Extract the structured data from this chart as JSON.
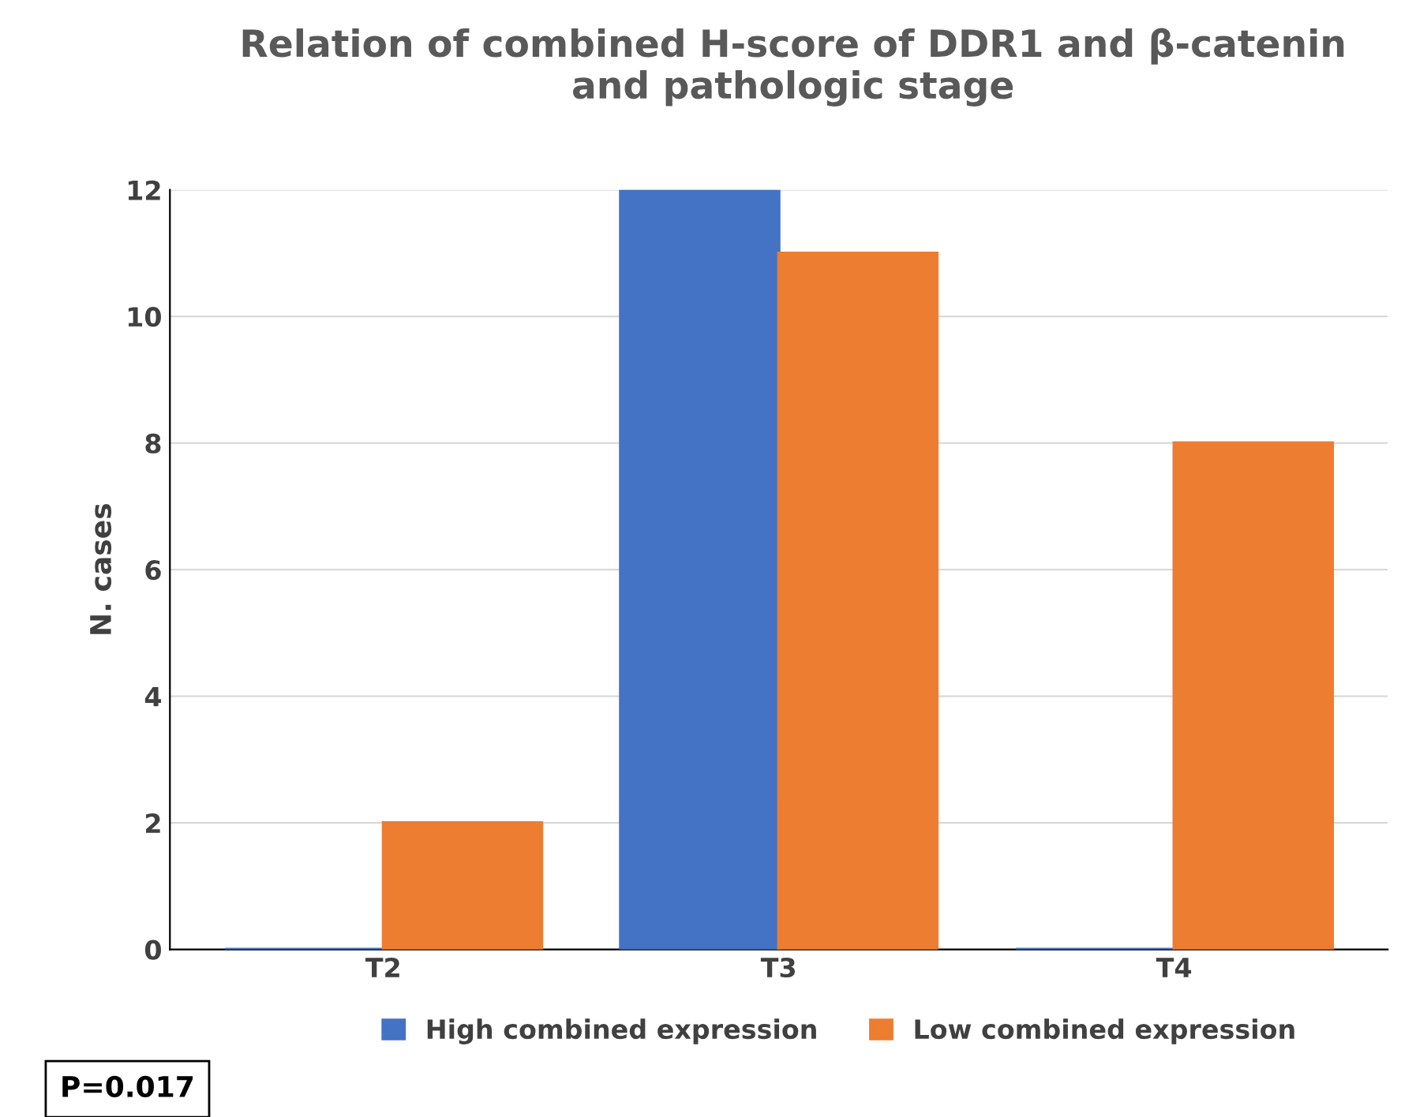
{
  "chart_data": {
    "type": "bar",
    "title": "Relation of combined H-score of DDR1 and β-catenin\nand pathologic stage",
    "ylabel": "N. cases",
    "categories": [
      "T2",
      "T3",
      "T4"
    ],
    "series": [
      {
        "name": "High combined expression",
        "color": "#4472c4",
        "values": [
          0,
          12,
          0
        ]
      },
      {
        "name": "Low combined expression",
        "color": "#ed7d31",
        "values": [
          2,
          11,
          8
        ]
      }
    ],
    "ylim": [
      0,
      12
    ],
    "yticks": [
      0,
      2,
      4,
      6,
      8,
      10,
      12
    ],
    "grid": "y",
    "legend": "bottom",
    "annotations": [
      "P=0.017"
    ]
  }
}
